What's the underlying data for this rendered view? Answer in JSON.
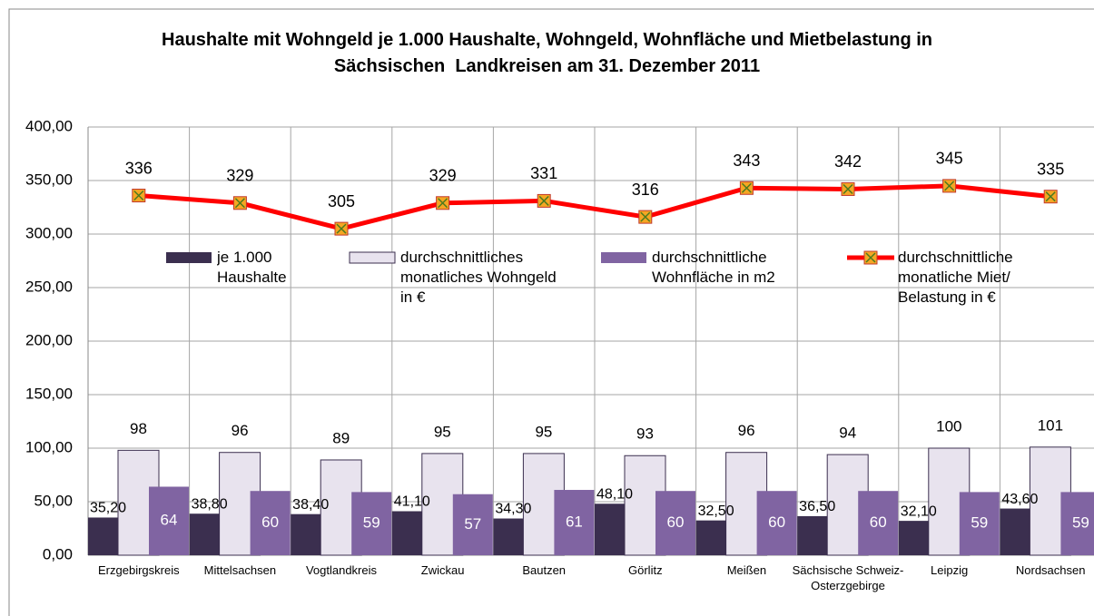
{
  "chart_data": {
    "type": "bar-line",
    "title": "Haushalte mit Wohngeld je 1.000 Haushalte, Wohngeld, Wohnfläche und Mietbelastung in Sächsischen  Landkreisen am 31. Dezember 2011",
    "categories": [
      "Erzgebirgskreis",
      "Mittelsachsen",
      "Vogtlandkreis",
      "Zwickau",
      "Bautzen",
      "Görlitz",
      "Meißen",
      "Sächsische Schweiz-Osterzgebirge",
      "Leipzig",
      "Nordsachsen"
    ],
    "series": [
      {
        "name": "je 1.000 Haushalte",
        "type": "bar",
        "color": "#3b2f4f",
        "values": [
          35.2,
          38.8,
          38.4,
          41.1,
          34.3,
          48.1,
          32.5,
          36.5,
          32.1,
          43.6
        ],
        "value_labels": [
          "35,20",
          "38,80",
          "38,40",
          "41,10",
          "34,30",
          "48,10",
          "32,50",
          "36,50",
          "32,10",
          "43,60"
        ]
      },
      {
        "name": "durchschnittliches monatliches Wohngeld in €",
        "type": "bar",
        "color": "#e8e3ee",
        "values": [
          98,
          96,
          89,
          95,
          95,
          93,
          96,
          94,
          100,
          101
        ]
      },
      {
        "name": "durchschnittliche Wohnfläche in m2",
        "type": "bar",
        "color": "#8064a2",
        "values": [
          64,
          60,
          59,
          57,
          61,
          60,
          60,
          60,
          59,
          59
        ]
      },
      {
        "name": "durchschnittliche monatliche Miet/ Belastung in €",
        "type": "line",
        "color": "#ff0000",
        "values": [
          336,
          329,
          305,
          329,
          331,
          316,
          343,
          342,
          345,
          335
        ]
      }
    ],
    "ylim": [
      0,
      400
    ],
    "yticks": [
      {
        "value": 0,
        "label": "0,00"
      },
      {
        "value": 50,
        "label": "50,00"
      },
      {
        "value": 100,
        "label": "100,00"
      },
      {
        "value": 150,
        "label": "150,00"
      },
      {
        "value": 200,
        "label": "200,00"
      },
      {
        "value": 250,
        "label": "250,00"
      },
      {
        "value": 300,
        "label": "300,00"
      },
      {
        "value": 350,
        "label": "350,00"
      },
      {
        "value": 400,
        "label": "400,00"
      }
    ],
    "grid": true
  }
}
